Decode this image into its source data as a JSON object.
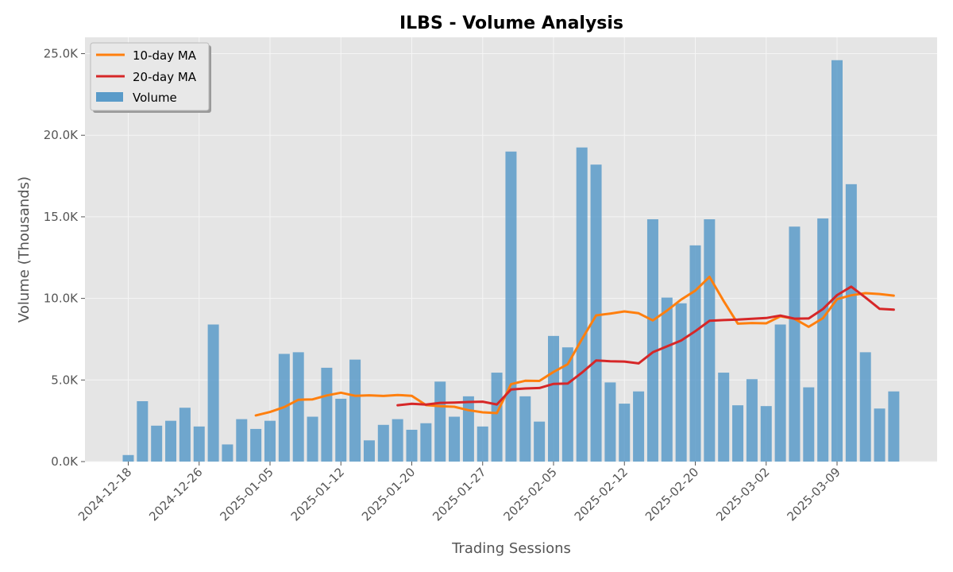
{
  "chart_data": {
    "type": "bar",
    "title": "ILBS - Volume Analysis",
    "xlabel": "Trading Sessions",
    "ylabel": "Volume (Thousands)",
    "ylim": [
      0,
      26000
    ],
    "yticks": [
      0,
      5000,
      10000,
      15000,
      20000,
      25000
    ],
    "ytick_labels": [
      "0.0K",
      "5.0K",
      "10.0K",
      "15.0K",
      "20.0K",
      "25.0K"
    ],
    "xtick_labels": [
      {
        "index": 0,
        "label": "2024-12-18"
      },
      {
        "index": 5,
        "label": "2024-12-26"
      },
      {
        "index": 10,
        "label": "2025-01-05"
      },
      {
        "index": 15,
        "label": "2025-01-12"
      },
      {
        "index": 20,
        "label": "2025-01-20"
      },
      {
        "index": 25,
        "label": "2025-01-27"
      },
      {
        "index": 30,
        "label": "2025-02-05"
      },
      {
        "index": 35,
        "label": "2025-02-12"
      },
      {
        "index": 40,
        "label": "2025-02-20"
      },
      {
        "index": 45,
        "label": "2025-03-02"
      },
      {
        "index": 50,
        "label": "2025-03-09"
      }
    ],
    "grid": true,
    "legend_position": "top-left",
    "bar_color": "#5a9bc9",
    "series": [
      {
        "name": "Volume",
        "type": "bar",
        "color": "#5a9bc9",
        "values": [
          400,
          3700,
          2200,
          2500,
          3300,
          2150,
          8400,
          1050,
          2600,
          2000,
          2500,
          6600,
          6700,
          2750,
          5750,
          3850,
          6250,
          1300,
          2250,
          2600,
          1950,
          2350,
          4900,
          2750,
          4000,
          2150,
          5450,
          19000,
          4000,
          2450,
          7700,
          7000,
          19250,
          18200,
          4850,
          3550,
          4300,
          14850,
          10050,
          9700,
          13250,
          14850,
          5450,
          3450,
          5050,
          3400,
          8400,
          14400,
          4550,
          14900,
          24600,
          17000,
          6700,
          3250,
          4300
        ]
      },
      {
        "name": "10-day MA",
        "type": "line",
        "color": "#ff7f0e",
        "start_index": 9,
        "values": [
          2830,
          3040,
          3340,
          3790,
          3810,
          4050,
          4220,
          4030,
          4060,
          4020,
          4080,
          4030,
          3460,
          3400,
          3360,
          3150,
          3020,
          2970,
          4740,
          4950,
          4940,
          5490,
          5970,
          7500,
          8960,
          9070,
          9200,
          9090,
          8650,
          9250,
          9930,
          10480,
          11320,
          9840,
          8450,
          8490,
          8470,
          8900,
          8750,
          8260,
          8790,
          9950,
          10190,
          10320,
          10270,
          10170
        ]
      },
      {
        "name": "20-day MA",
        "type": "line",
        "color": "#d62728",
        "start_index": 19,
        "values": [
          3450,
          3540,
          3490,
          3600,
          3620,
          3650,
          3670,
          3500,
          4420,
          4480,
          4510,
          4760,
          4780,
          5450,
          6200,
          6150,
          6130,
          6020,
          6700,
          7060,
          7420,
          7990,
          8630,
          8670,
          8700,
          8750,
          8800,
          8950,
          8760,
          8770,
          9350,
          10200,
          10720,
          10060,
          9360,
          9310
        ]
      }
    ]
  }
}
